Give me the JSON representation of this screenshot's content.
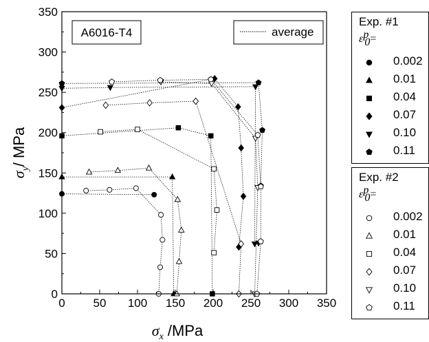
{
  "chart_data": {
    "type": "scatter",
    "title": "",
    "xlabel_symbol": "σ",
    "xlabel_sub": "x",
    "xlabel_unit": " /MPa",
    "ylabel_symbol": "σ",
    "ylabel_sub": "y",
    "ylabel_unit": "/ MPa",
    "xlim": [
      0,
      350
    ],
    "ylim": [
      0,
      350
    ],
    "x_ticks": [
      "0",
      "50",
      "100",
      "150",
      "200",
      "250",
      "300",
      "350"
    ],
    "y_ticks": [
      "0",
      "50",
      "100",
      "150",
      "200",
      "250",
      "300",
      "350"
    ],
    "material_label": "A6016-T4",
    "average_label": "average",
    "grid": false,
    "legend_exp1": {
      "title": "Exp. #1",
      "eps_symbol": "ε",
      "eps_sup": "p",
      "eps_sub": "0",
      "eps_eq": "=",
      "items": [
        {
          "label": "0.002",
          "marker": "circle-filled"
        },
        {
          "label": "0.01",
          "marker": "triangle-up-filled"
        },
        {
          "label": "0.04",
          "marker": "square-filled"
        },
        {
          "label": "0.07",
          "marker": "diamond-filled"
        },
        {
          "label": "0.10",
          "marker": "triangle-down-filled"
        },
        {
          "label": "0.11",
          "marker": "pentagon-filled"
        }
      ]
    },
    "legend_exp2": {
      "title": "Exp. #2",
      "eps_symbol": "ε",
      "eps_sup": "p",
      "eps_sub": "0",
      "eps_eq": "=",
      "items": [
        {
          "label": "0.002",
          "marker": "circle-open"
        },
        {
          "label": "0.01",
          "marker": "triangle-up-open"
        },
        {
          "label": "0.04",
          "marker": "square-open"
        },
        {
          "label": "0.07",
          "marker": "diamond-open"
        },
        {
          "label": "0.10",
          "marker": "triangle-down-open"
        },
        {
          "label": "0.11",
          "marker": "pentagon-open"
        }
      ]
    },
    "series": [
      {
        "name": "0.002",
        "exp": 1,
        "marker": "circle-filled",
        "points": [
          [
            0,
            124
          ],
          [
            122,
            123
          ]
        ]
      },
      {
        "name": "0.002",
        "exp": 2,
        "marker": "circle-open",
        "points": [
          [
            32,
            128
          ],
          [
            63,
            129
          ],
          [
            98,
            131
          ],
          [
            131,
            98
          ],
          [
            133,
            67
          ],
          [
            130,
            33
          ],
          [
            128,
            0
          ]
        ]
      },
      {
        "name": "0.01",
        "exp": 1,
        "marker": "triangle-up-filled",
        "points": [
          [
            0,
            145
          ],
          [
            146,
            145
          ],
          [
            148,
            0
          ]
        ]
      },
      {
        "name": "0.01",
        "exp": 2,
        "marker": "triangle-up-open",
        "points": [
          [
            36,
            151
          ],
          [
            74,
            153
          ],
          [
            115,
            156
          ],
          [
            153,
            117
          ],
          [
            158,
            79
          ],
          [
            155,
            40
          ],
          [
            152,
            0
          ]
        ]
      },
      {
        "name": "0.04",
        "exp": 1,
        "marker": "square-filled",
        "points": [
          [
            0,
            196
          ],
          [
            154,
            206
          ],
          [
            197,
            196
          ],
          [
            199,
            0
          ]
        ]
      },
      {
        "name": "0.04",
        "exp": 2,
        "marker": "square-open",
        "points": [
          [
            51,
            201
          ],
          [
            100,
            204
          ],
          [
            201,
            155
          ],
          [
            205,
            104
          ],
          [
            201,
            51
          ]
        ]
      },
      {
        "name": "0.07",
        "exp": 1,
        "marker": "diamond-filled",
        "points": [
          [
            0,
            231
          ],
          [
            202,
            267
          ],
          [
            233,
            232
          ],
          [
            237,
            181
          ],
          [
            240,
            121
          ],
          [
            234,
            58
          ]
        ]
      },
      {
        "name": "0.07",
        "exp": 2,
        "marker": "diamond-open",
        "points": [
          [
            58,
            234
          ],
          [
            116,
            237
          ],
          [
            177,
            239
          ],
          [
            237,
            62
          ],
          [
            234,
            0
          ]
        ]
      },
      {
        "name": "0.10",
        "exp": 1,
        "marker": "triangle-down-filled",
        "points": [
          [
            0,
            255
          ],
          [
            64,
            256
          ],
          [
            256,
            257
          ],
          [
            255,
            62
          ],
          [
            260,
            63
          ]
        ]
      },
      {
        "name": "0.10",
        "exp": 2,
        "marker": "triangle-down-open",
        "points": [
          [
            131,
            263
          ],
          [
            198,
            261
          ],
          [
            256,
            193
          ],
          [
            259,
            132
          ],
          [
            255,
            0
          ]
        ]
      },
      {
        "name": "0.11",
        "exp": 1,
        "marker": "pentagon-filled",
        "points": [
          [
            0,
            261
          ],
          [
            260,
            262
          ],
          [
            265,
            203
          ],
          [
            263,
            134
          ]
        ]
      },
      {
        "name": "0.11",
        "exp": 2,
        "marker": "pentagon-open",
        "points": [
          [
            66,
            263
          ],
          [
            130,
            265
          ],
          [
            197,
            266
          ],
          [
            259,
            197
          ],
          [
            263,
            133
          ],
          [
            263,
            65
          ],
          [
            258,
            0
          ]
        ]
      }
    ]
  }
}
